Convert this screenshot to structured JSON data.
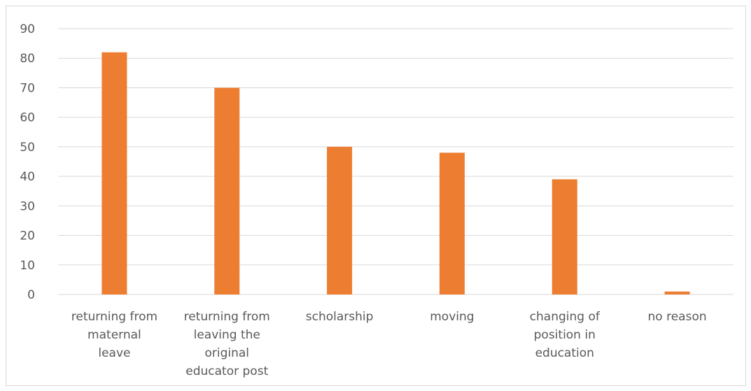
{
  "chart_data": {
    "type": "bar",
    "categories": [
      [
        "returning from",
        "maternal",
        "leave"
      ],
      [
        "returning from",
        "leaving the",
        "original",
        "educator post"
      ],
      [
        "scholarship"
      ],
      [
        "moving"
      ],
      [
        "changing of",
        "position in",
        "education"
      ],
      [
        "no reason"
      ]
    ],
    "values": [
      82,
      70,
      50,
      48,
      39,
      1
    ],
    "ylim": [
      0,
      90
    ],
    "yticks": [
      0,
      10,
      20,
      30,
      40,
      50,
      60,
      70,
      80,
      90
    ],
    "title": "",
    "xlabel": "",
    "ylabel": "",
    "grid": true,
    "legend": "none",
    "bar_color": "#ED7D31",
    "grid_color": "#D9D9D9",
    "text_color": "#595959"
  }
}
